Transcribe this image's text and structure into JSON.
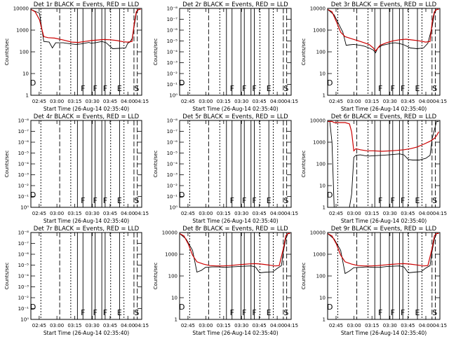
{
  "chart_data": [
    {
      "type": "line",
      "title": "Det 1r BLACK = Events, RED = LLD",
      "xlabel": "Start Time (26-Aug-14 02:35:40)",
      "ylabel": "Counts/sec",
      "xtick_labels": [
        "02:45",
        "03:00",
        "03:15",
        "03:30",
        "03:45",
        "04:00",
        "04:15"
      ],
      "ytick_labels": [
        "1",
        "10",
        "100",
        "1000",
        "10000"
      ],
      "yscale": "log",
      "ylim": [
        1,
        10000
      ],
      "xlim_minutes": [
        0,
        103
      ],
      "markers": [
        "D",
        "F",
        "F",
        "F",
        "E",
        "S"
      ],
      "series": [
        {
          "color": "#000000",
          "x": [
            0,
            8,
            12,
            17,
            20,
            23,
            30,
            38,
            42,
            46,
            50,
            54,
            56,
            60,
            66,
            70,
            76,
            82,
            88,
            90,
            92,
            94,
            96,
            98,
            100,
            102
          ],
          "y": [
            9000,
            6000,
            300,
            280,
            150,
            260,
            260,
            230,
            220,
            230,
            250,
            270,
            250,
            260,
            300,
            260,
            140,
            145,
            150,
            250,
            280,
            400,
            1500,
            6000,
            9000,
            9000
          ]
        },
        {
          "color": "#cc0000",
          "x": [
            0,
            4,
            8,
            12,
            16,
            22,
            30,
            38,
            44,
            50,
            56,
            62,
            68,
            74,
            80,
            86,
            90,
            94,
            96,
            98,
            100,
            102
          ],
          "y": [
            9000,
            7000,
            3000,
            500,
            450,
            430,
            350,
            280,
            270,
            300,
            330,
            350,
            370,
            360,
            330,
            290,
            280,
            300,
            2000,
            7000,
            9000,
            9000
          ]
        }
      ]
    },
    {
      "type": "line",
      "title": "Det 2r BLACK = Events, RED = LLD",
      "xlabel": "Start Time (26-Aug-14 02:35:40)",
      "ylabel": "Counts/sec",
      "xtick_labels": [
        "02:45",
        "03:00",
        "03:15",
        "03:30",
        "03:45",
        "04:00",
        "04:15"
      ],
      "ytick_labels": [
        "10⁰",
        "10⁻¹",
        "10⁻²",
        "10⁻³",
        "10⁻⁴",
        "10⁻⁵",
        "10⁻⁶",
        "10⁻⁷",
        "10⁻⁸"
      ],
      "markers": [
        "D",
        "F",
        "F",
        "F",
        "E",
        "S"
      ],
      "series": []
    },
    {
      "type": "line",
      "title": "Det 3r BLACK = Events, RED = LLD",
      "xlabel": "Start Time (26-Aug-14 02:35:40)",
      "ylabel": "Counts/sec",
      "xtick_labels": [
        "02:45",
        "03:00",
        "03:15",
        "03:30",
        "03:45",
        "04:00",
        "04:15"
      ],
      "ytick_labels": [
        "1",
        "10",
        "100",
        "1000",
        "10000"
      ],
      "yscale": "log",
      "ylim": [
        1,
        10000
      ],
      "xlim_minutes": [
        0,
        103
      ],
      "markers": [
        "D",
        "F",
        "F",
        "F",
        "E",
        "S"
      ],
      "series": [
        {
          "color": "#000000",
          "x": [
            0,
            6,
            10,
            14,
            17,
            20,
            24,
            30,
            34,
            38,
            42,
            44,
            46,
            50,
            54,
            58,
            62,
            66,
            70,
            76,
            82,
            88,
            92,
            96,
            98,
            100,
            102
          ],
          "y": [
            9000,
            5000,
            2000,
            800,
            200,
            210,
            220,
            200,
            180,
            150,
            120,
            90,
            150,
            200,
            220,
            250,
            260,
            240,
            210,
            150,
            140,
            150,
            250,
            1500,
            6000,
            9000,
            9000
          ]
        },
        {
          "color": "#cc0000",
          "x": [
            0,
            4,
            8,
            12,
            16,
            22,
            30,
            38,
            42,
            44,
            48,
            54,
            60,
            66,
            72,
            78,
            84,
            90,
            94,
            96,
            98,
            100,
            102
          ],
          "y": [
            9000,
            7000,
            2500,
            800,
            500,
            400,
            300,
            220,
            150,
            110,
            200,
            260,
            320,
            360,
            380,
            350,
            320,
            280,
            300,
            2500,
            7000,
            9000,
            9000
          ]
        }
      ]
    },
    {
      "type": "line",
      "title": "Det 4r BLACK = Events, RED = LLD",
      "xlabel": "Start Time (26-Aug-14 02:35:40)",
      "ylabel": "Counts/sec",
      "xtick_labels": [
        "02:45",
        "03:00",
        "03:15",
        "03:30",
        "03:45",
        "04:00",
        "04:15"
      ],
      "ytick_labels": [
        "10⁰",
        "10⁻¹",
        "10⁻²",
        "10⁻³",
        "10⁻⁴",
        "10⁻⁵",
        "10⁻⁶",
        "10⁻⁷",
        "10⁻⁸"
      ],
      "markers": [
        "D",
        "F",
        "F",
        "F",
        "E",
        "S"
      ],
      "series": []
    },
    {
      "type": "line",
      "title": "Det 5r BLACK = Events, RED = LLD",
      "xlabel": "Start Time (26-Aug-14 02:35:40)",
      "ylabel": "Counts/sec",
      "xtick_labels": [
        "02:45",
        "03:00",
        "03:15",
        "03:30",
        "03:45",
        "04:00",
        "04:15"
      ],
      "ytick_labels": [
        "10⁰",
        "10⁻¹",
        "10⁻²",
        "10⁻³",
        "10⁻⁴",
        "10⁻⁵",
        "10⁻⁶",
        "10⁻⁷",
        "10⁻⁸"
      ],
      "markers": [
        "D",
        "F",
        "F",
        "F",
        "E",
        "S"
      ],
      "series": []
    },
    {
      "type": "line",
      "title": "Det 6r BLACK = Events, RED = LLD",
      "xlabel": "Start Time (26-Aug-14 02:35:40)",
      "ylabel": "Counts/sec",
      "xtick_labels": [
        "02:45",
        "03:00",
        "03:15",
        "03:30",
        "03:45",
        "04:00",
        "04:15"
      ],
      "ytick_labels": [
        "1",
        "10",
        "100",
        "1000",
        "10000"
      ],
      "yscale": "log",
      "ylim": [
        1,
        10000
      ],
      "xlim_minutes": [
        0,
        103
      ],
      "markers": [
        "D",
        "F",
        "F",
        "F",
        "E",
        "S"
      ],
      "series": [
        {
          "color": "#000000",
          "x": [
            0,
            2,
            4,
            6,
            20,
            22,
            24,
            26,
            30,
            34,
            38,
            44,
            50,
            56,
            60,
            66,
            70,
            74,
            78,
            84,
            90,
            94,
            96,
            100,
            102
          ],
          "y": [
            9000,
            9000,
            1000,
            1,
            1,
            4,
            200,
            250,
            260,
            240,
            230,
            240,
            250,
            260,
            270,
            290,
            260,
            160,
            150,
            150,
            180,
            250,
            1500,
            9000,
            9000
          ]
        },
        {
          "color": "#cc0000",
          "x": [
            0,
            1,
            2,
            4,
            6,
            8,
            12,
            16,
            20,
            22,
            24,
            26,
            30,
            36,
            42,
            50,
            58,
            64,
            70,
            76,
            82,
            88,
            94,
            98,
            100,
            102
          ],
          "y": [
            9000,
            9000,
            9000,
            9000,
            8000,
            8000,
            8000,
            8000,
            7000,
            3000,
            400,
            500,
            450,
            400,
            400,
            380,
            400,
            420,
            450,
            500,
            600,
            800,
            1100,
            1500,
            2000,
            3000
          ]
        }
      ]
    },
    {
      "type": "line",
      "title": "Det 7r BLACK = Events, RED = LLD",
      "xlabel": "Start Time (26-Aug-14 02:35:40)",
      "ylabel": "Counts/sec",
      "xtick_labels": [
        "02:45",
        "03:00",
        "03:15",
        "03:30",
        "03:45",
        "04:00",
        "04:15"
      ],
      "ytick_labels": [
        "10⁰",
        "10⁻¹",
        "10⁻²",
        "10⁻³",
        "10⁻⁴",
        "10⁻⁵",
        "10⁻⁶",
        "10⁻⁷",
        "10⁻⁸"
      ],
      "markers": [
        "D",
        "F",
        "F",
        "F",
        "E",
        "S"
      ],
      "series": []
    },
    {
      "type": "line",
      "title": "Det 8r BLACK = Events, RED = LLD",
      "xlabel": "Start Time (26-Aug-14 02:35:40)",
      "ylabel": "Counts/sec",
      "xtick_labels": [
        "02:45",
        "03:00",
        "03:15",
        "03:30",
        "03:45",
        "04:00",
        "04:15"
      ],
      "ytick_labels": [
        "1",
        "10",
        "100",
        "1000",
        "10000"
      ],
      "yscale": "log",
      "ylim": [
        1,
        10000
      ],
      "xlim_minutes": [
        0,
        103
      ],
      "markers": [
        "D",
        "F",
        "F",
        "F",
        "E",
        "S"
      ],
      "series": [
        {
          "color": "#000000",
          "x": [
            0,
            6,
            12,
            16,
            20,
            24,
            30,
            36,
            42,
            48,
            54,
            60,
            66,
            70,
            74,
            80,
            86,
            90,
            94,
            96,
            98,
            100,
            102
          ],
          "y": [
            9000,
            5000,
            1500,
            150,
            180,
            250,
            260,
            260,
            250,
            260,
            270,
            280,
            290,
            260,
            140,
            150,
            155,
            220,
            300,
            1500,
            5000,
            9000,
            9000
          ]
        },
        {
          "color": "#cc0000",
          "x": [
            0,
            4,
            8,
            12,
            16,
            22,
            28,
            34,
            40,
            46,
            52,
            58,
            64,
            70,
            76,
            82,
            88,
            92,
            96,
            98,
            100,
            102
          ],
          "y": [
            9000,
            7000,
            3000,
            900,
            450,
            350,
            300,
            290,
            290,
            300,
            320,
            340,
            360,
            370,
            350,
            320,
            290,
            300,
            2000,
            7000,
            9000,
            9000
          ]
        }
      ]
    },
    {
      "type": "line",
      "title": "Det 9r BLACK = Events, RED = LLD",
      "xlabel": "Start Time (26-Aug-14 02:35:40)",
      "ylabel": "Counts/sec",
      "xtick_labels": [
        "02:45",
        "03:00",
        "03:15",
        "03:30",
        "03:45",
        "04:00",
        "04:15"
      ],
      "ytick_labels": [
        "1",
        "10",
        "100",
        "1000",
        "10000"
      ],
      "yscale": "log",
      "ylim": [
        1,
        10000
      ],
      "xlim_minutes": [
        0,
        103
      ],
      "markers": [
        "D",
        "F",
        "F",
        "F",
        "E",
        "S"
      ],
      "series": [
        {
          "color": "#000000",
          "x": [
            0,
            6,
            12,
            16,
            20,
            24,
            30,
            36,
            42,
            48,
            54,
            60,
            66,
            70,
            74,
            80,
            86,
            90,
            94,
            96,
            98,
            100,
            102
          ],
          "y": [
            9000,
            5000,
            1500,
            130,
            170,
            240,
            250,
            260,
            250,
            250,
            270,
            280,
            290,
            260,
            140,
            150,
            160,
            230,
            300,
            1500,
            5000,
            9000,
            9000
          ]
        },
        {
          "color": "#cc0000",
          "x": [
            0,
            4,
            8,
            12,
            16,
            22,
            28,
            34,
            40,
            46,
            52,
            58,
            64,
            70,
            76,
            82,
            88,
            92,
            96,
            98,
            100,
            102
          ],
          "y": [
            9000,
            7000,
            3000,
            900,
            450,
            350,
            300,
            290,
            290,
            300,
            320,
            340,
            360,
            370,
            350,
            320,
            290,
            300,
            2000,
            7000,
            9000,
            9000
          ]
        }
      ]
    }
  ]
}
